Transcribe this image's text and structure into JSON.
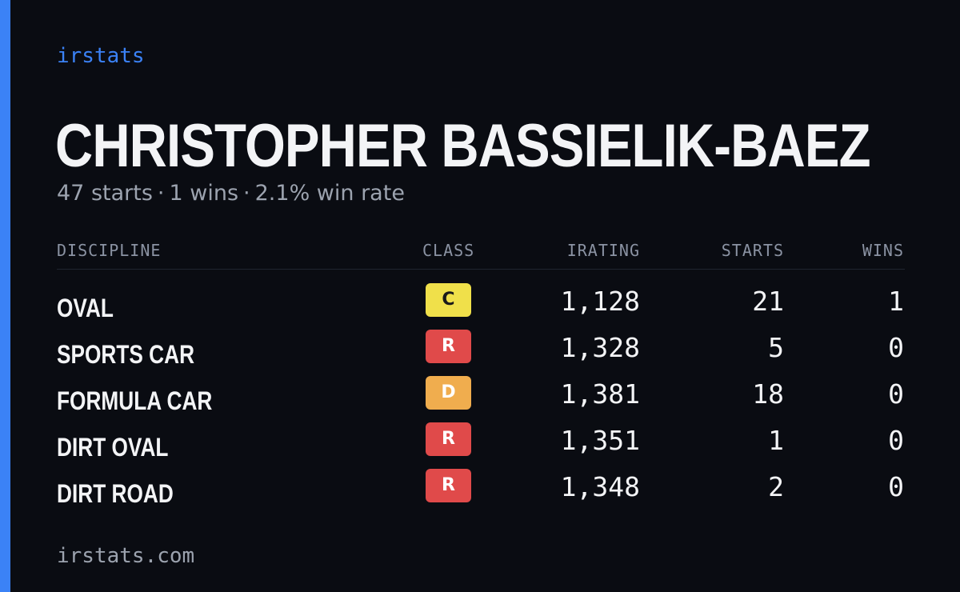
{
  "brand": "irstats",
  "driver": {
    "name": "CHRISTOPHER BASSIELIK-BAEZ"
  },
  "summary": {
    "starts": "47 starts",
    "wins": "1 wins",
    "win_rate": "2.1% win rate",
    "separator": "·"
  },
  "table": {
    "headers": {
      "discipline": "DISCIPLINE",
      "class": "CLASS",
      "irating": "IRATING",
      "starts": "STARTS",
      "wins": "WINS"
    },
    "rows": [
      {
        "discipline": "OVAL",
        "class": "C",
        "irating": "1,128",
        "starts": "21",
        "wins": "1"
      },
      {
        "discipline": "SPORTS CAR",
        "class": "R",
        "irating": "1,328",
        "starts": "5",
        "wins": "0"
      },
      {
        "discipline": "FORMULA CAR",
        "class": "D",
        "irating": "1,381",
        "starts": "18",
        "wins": "0"
      },
      {
        "discipline": "DIRT OVAL",
        "class": "R",
        "irating": "1,351",
        "starts": "1",
        "wins": "0"
      },
      {
        "discipline": "DIRT ROAD",
        "class": "R",
        "irating": "1,348",
        "starts": "2",
        "wins": "0"
      }
    ]
  },
  "class_colors": {
    "C": {
      "bg": "#f0e04a",
      "fg": "#1a1a1a"
    },
    "D": {
      "bg": "#f0ad4e",
      "fg": "#ffffff"
    },
    "R": {
      "bg": "#e04a4a",
      "fg": "#ffffff"
    }
  },
  "colors": {
    "accent": "#3b82f6",
    "background": "#0a0c12",
    "text": "#f3f4f6",
    "muted": "#9ca3af"
  },
  "footer": {
    "url": "irstats.com"
  }
}
